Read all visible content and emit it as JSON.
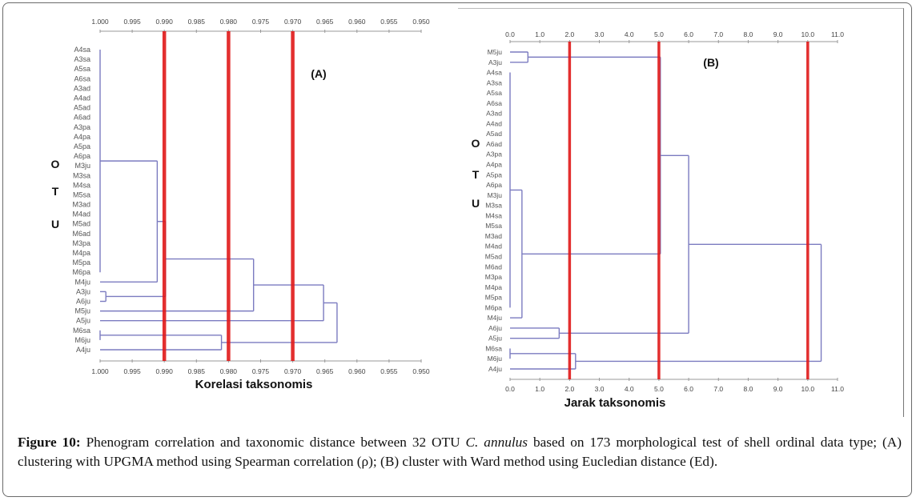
{
  "figure": {
    "caption_label": "Figure 10:",
    "caption_part1": " Phenogram correlation and taxonomic distance between 32 OTU ",
    "caption_species": "C. annulus",
    "caption_part2": " based on 173 morphological test of shell ordinal data type; (A) clustering with UPGMA method using Spearman correlation (ρ); (B) cluster with Ward method using Eucledian distance (Ed)."
  },
  "colors": {
    "branch": "#7b7bc0",
    "cutoff": "#e01818",
    "axis": "#999999",
    "tick_text": "#444444"
  },
  "chart_data": [
    {
      "type": "dendrogram",
      "panel_label": "(A)",
      "title": "",
      "xlabel": "Korelasi taksonomis",
      "ylabel": "O T U",
      "ylabel_letters": [
        "O",
        "T",
        "U"
      ],
      "xlim": [
        1.0,
        0.95
      ],
      "x_ticks": [
        "1.000",
        "0.995",
        "0.990",
        "0.985",
        "0.980",
        "0.975",
        "0.970",
        "0.965",
        "0.960",
        "0.955",
        "0.950"
      ],
      "x_tick_values": [
        1.0,
        0.995,
        0.99,
        0.985,
        0.98,
        0.975,
        0.97,
        0.965,
        0.96,
        0.955,
        0.95
      ],
      "cutoff_lines": [
        0.99,
        0.98,
        0.97
      ],
      "leaves": [
        "A4sa",
        "A3sa",
        "A5sa",
        "A6sa",
        "A3ad",
        "A4ad",
        "A5ad",
        "A6ad",
        "A3pa",
        "A4pa",
        "A5pa",
        "A6pa",
        "M3ju",
        "M3sa",
        "M4sa",
        "M5sa",
        "M3ad",
        "M4ad",
        "M5ad",
        "M6ad",
        "M3pa",
        "M4pa",
        "M5pa",
        "M6pa",
        "M4ju",
        "A3ju",
        "A6ju",
        "M5ju",
        "A5ju",
        "M6sa",
        "M6ju",
        "A4ju"
      ],
      "merges": [
        {
          "id": "c1",
          "members": [
            "A4sa",
            "A3sa",
            "A5sa",
            "A6sa",
            "A3ad",
            "A4ad",
            "A5ad",
            "A6ad",
            "A3pa",
            "A4pa",
            "A5pa",
            "A6pa",
            "M3ju",
            "M3sa",
            "M4sa",
            "M5sa",
            "M3ad",
            "M4ad",
            "M5ad",
            "M6ad",
            "M3pa",
            "M4pa",
            "M5pa",
            "M6pa"
          ],
          "height": 1.0
        },
        {
          "id": "c2",
          "left": "c1",
          "right": "M4ju",
          "height": 0.9911
        },
        {
          "id": "c3",
          "left": "A3ju",
          "right": "A6ju",
          "height": 0.9991
        },
        {
          "id": "c3b",
          "left": "c2",
          "right": "c3",
          "height": 0.9898
        },
        {
          "id": "c4",
          "left": "c3b",
          "right": "M5ju",
          "height": 0.9761
        },
        {
          "id": "c5",
          "left": "c4",
          "right": "A5ju",
          "height": 0.9652
        },
        {
          "id": "c6",
          "members": [
            "M6sa",
            "M6ju"
          ],
          "height": 1.0
        },
        {
          "id": "c7",
          "left": "c6",
          "right": "A4ju",
          "height": 0.9811
        },
        {
          "id": "c8",
          "left": "c5",
          "right": "c7",
          "height": 0.9631
        }
      ]
    },
    {
      "type": "dendrogram",
      "panel_label": "(B)",
      "title": "",
      "xlabel": "Jarak taksonomis",
      "ylabel": "O T U",
      "ylabel_letters": [
        "O",
        "T",
        "U"
      ],
      "xlim": [
        0.0,
        11.0
      ],
      "x_ticks": [
        "0.0",
        "1.0",
        "2.0",
        "3.0",
        "4.0",
        "5.0",
        "6.0",
        "7.0",
        "8.0",
        "9.0",
        "10.0",
        "11.0"
      ],
      "x_tick_values": [
        0,
        1,
        2,
        3,
        4,
        5,
        6,
        7,
        8,
        9,
        10,
        11
      ],
      "cutoff_lines": [
        2.0,
        5.0,
        10.0
      ],
      "leaves": [
        "M5ju",
        "A3ju",
        "A4sa",
        "A3sa",
        "A5sa",
        "A6sa",
        "A3ad",
        "A4ad",
        "A5ad",
        "A6ad",
        "A3pa",
        "A4pa",
        "A5pa",
        "A6pa",
        "M3ju",
        "M3sa",
        "M4sa",
        "M5sa",
        "M3ad",
        "M4ad",
        "M5ad",
        "M6ad",
        "M3pa",
        "M4pa",
        "M5pa",
        "M6pa",
        "M4ju",
        "A6ju",
        "A5ju",
        "M6sa",
        "M6ju",
        "A4ju"
      ],
      "merges": [
        {
          "id": "d1",
          "left": "M5ju",
          "right": "A3ju",
          "height": 0.6
        },
        {
          "id": "d2",
          "members": [
            "A4sa",
            "A3sa",
            "A5sa",
            "A6sa",
            "A3ad",
            "A4ad",
            "A5ad",
            "A6ad",
            "A3pa",
            "A4pa",
            "A5pa",
            "A6pa",
            "M3ju",
            "M3sa",
            "M4sa",
            "M5sa",
            "M3ad",
            "M4ad",
            "M5ad",
            "M6ad",
            "M3pa",
            "M4pa",
            "M5pa",
            "M6pa"
          ],
          "height": 0.0
        },
        {
          "id": "d3",
          "left": "d2",
          "right": "M4ju",
          "height": 0.4
        },
        {
          "id": "d4",
          "left": "d1",
          "right": "d3",
          "height": 5.05
        },
        {
          "id": "d5",
          "left": "A6ju",
          "right": "A5ju",
          "height": 1.65
        },
        {
          "id": "d6",
          "left": "d4",
          "right": "d5",
          "height": 6.0
        },
        {
          "id": "d7",
          "members": [
            "M6sa",
            "M6ju"
          ],
          "height": 0.0
        },
        {
          "id": "d8",
          "left": "d7",
          "right": "A4ju",
          "height": 2.2
        },
        {
          "id": "d9",
          "left": "d6",
          "right": "d8",
          "height": 10.45
        }
      ]
    }
  ]
}
